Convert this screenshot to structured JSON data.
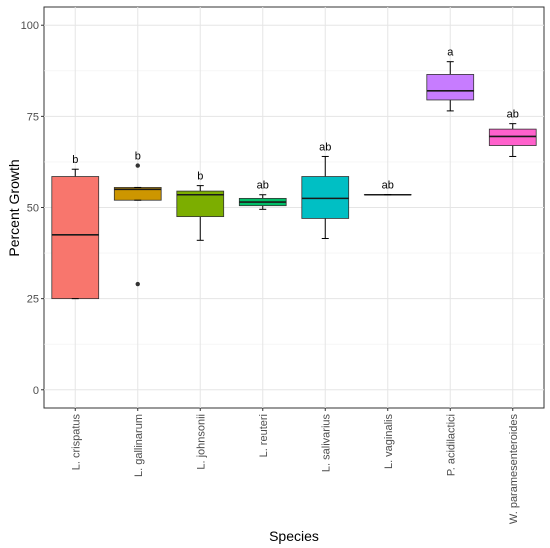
{
  "chart_data": {
    "type": "box",
    "title": "",
    "xlabel": "Species",
    "ylabel": "Percent Growth",
    "ylim": [
      -5,
      105
    ],
    "yticks": [
      0,
      25,
      50,
      75,
      100
    ],
    "ytick_labels": [
      "0",
      "25",
      "50",
      "75",
      "100"
    ],
    "grid": true,
    "legend": "none",
    "categories": [
      "L. crispatus",
      "L. gallinarum",
      "L. johnsonii",
      "L. reuteri",
      "L. salivarius",
      "L. vaginalis",
      "P. acidilactici",
      "W. paramesenteroides"
    ],
    "boxes": [
      {
        "category": "L. crispatus",
        "color": "#F8766D",
        "whisker_low": 25,
        "q1": 25,
        "median": 42.5,
        "q3": 58.5,
        "whisker_high": 60.5,
        "outliers": [],
        "letter": "b"
      },
      {
        "category": "L. gallinarum",
        "color": "#CD9600",
        "whisker_low": 52,
        "q1": 52,
        "median": 55,
        "q3": 55.5,
        "whisker_high": 55.5,
        "outliers": [
          61.5,
          29
        ],
        "letter": "b"
      },
      {
        "category": "L. johnsonii",
        "color": "#7CAE00",
        "whisker_low": 41,
        "q1": 47.5,
        "median": 53.5,
        "q3": 54.5,
        "whisker_high": 56,
        "outliers": [],
        "letter": "b"
      },
      {
        "category": "L. reuteri",
        "color": "#00BE67",
        "whisker_low": 49.5,
        "q1": 50.5,
        "median": 51.5,
        "q3": 52.5,
        "whisker_high": 53.5,
        "outliers": [],
        "letter": "ab"
      },
      {
        "category": "L. salivarius",
        "color": "#00BFC4",
        "whisker_low": 41.5,
        "q1": 47,
        "median": 52.5,
        "q3": 58.5,
        "whisker_high": 64,
        "outliers": [],
        "letter": "ab"
      },
      {
        "category": "L. vaginalis",
        "color": "#00A9FF",
        "whisker_low": 53.5,
        "q1": 53.5,
        "median": 53.5,
        "q3": 53.5,
        "whisker_high": 53.5,
        "outliers": [],
        "letter": "ab"
      },
      {
        "category": "P. acidilactici",
        "color": "#C77CFF",
        "whisker_low": 76.5,
        "q1": 79.5,
        "median": 82,
        "q3": 86.5,
        "whisker_high": 90,
        "outliers": [],
        "letter": "a"
      },
      {
        "category": "W. paramesenteroides",
        "color": "#FF61CC",
        "whisker_low": 64,
        "q1": 67,
        "median": 69.5,
        "q3": 71.5,
        "whisker_high": 73,
        "outliers": [],
        "letter": "ab"
      }
    ]
  }
}
